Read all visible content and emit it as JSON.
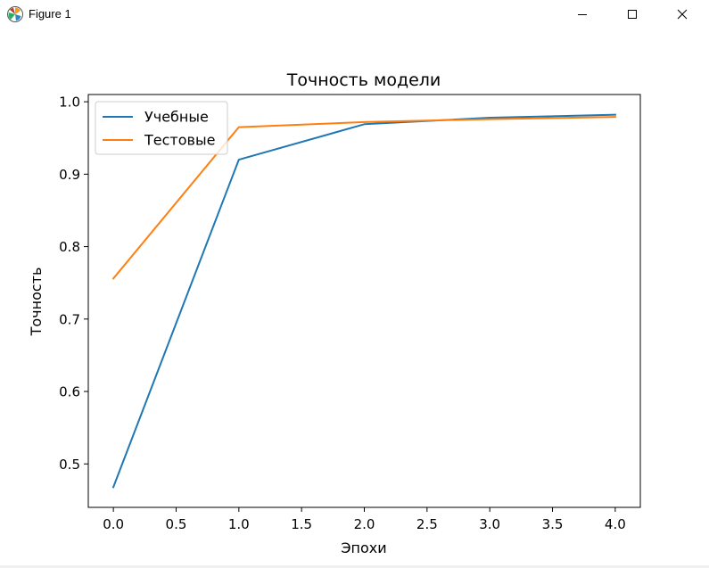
{
  "window": {
    "title": "Figure 1",
    "controls": [
      "minimize-icon",
      "maximize-icon",
      "close-icon"
    ]
  },
  "colors": {
    "series_1": "#1f77b4",
    "series_2": "#ff7f0e"
  },
  "chart_data": {
    "type": "line",
    "title": "Точность модели",
    "xlabel": "Эпохи",
    "ylabel": "Точность",
    "xlim": [
      -0.2,
      4.2
    ],
    "ylim": [
      0.44,
      1.01
    ],
    "xticks": [
      0.0,
      0.5,
      1.0,
      1.5,
      2.0,
      2.5,
      3.0,
      3.5,
      4.0
    ],
    "yticks": [
      0.5,
      0.6,
      0.7,
      0.8,
      0.9,
      1.0
    ],
    "xtick_labels": [
      "0.0",
      "0.5",
      "1.0",
      "1.5",
      "2.0",
      "2.5",
      "3.0",
      "3.5",
      "4.0"
    ],
    "ytick_labels": [
      "0.5",
      "0.6",
      "0.7",
      "0.8",
      "0.9",
      "1.0"
    ],
    "grid": false,
    "legend_position": "top-left",
    "x": [
      0,
      1,
      2,
      3,
      4
    ],
    "series": [
      {
        "name": "Учебные",
        "values": [
          0.468,
          0.92,
          0.969,
          0.978,
          0.982
        ]
      },
      {
        "name": "Тестовые",
        "values": [
          0.756,
          0.965,
          0.972,
          0.976,
          0.979
        ]
      }
    ]
  }
}
